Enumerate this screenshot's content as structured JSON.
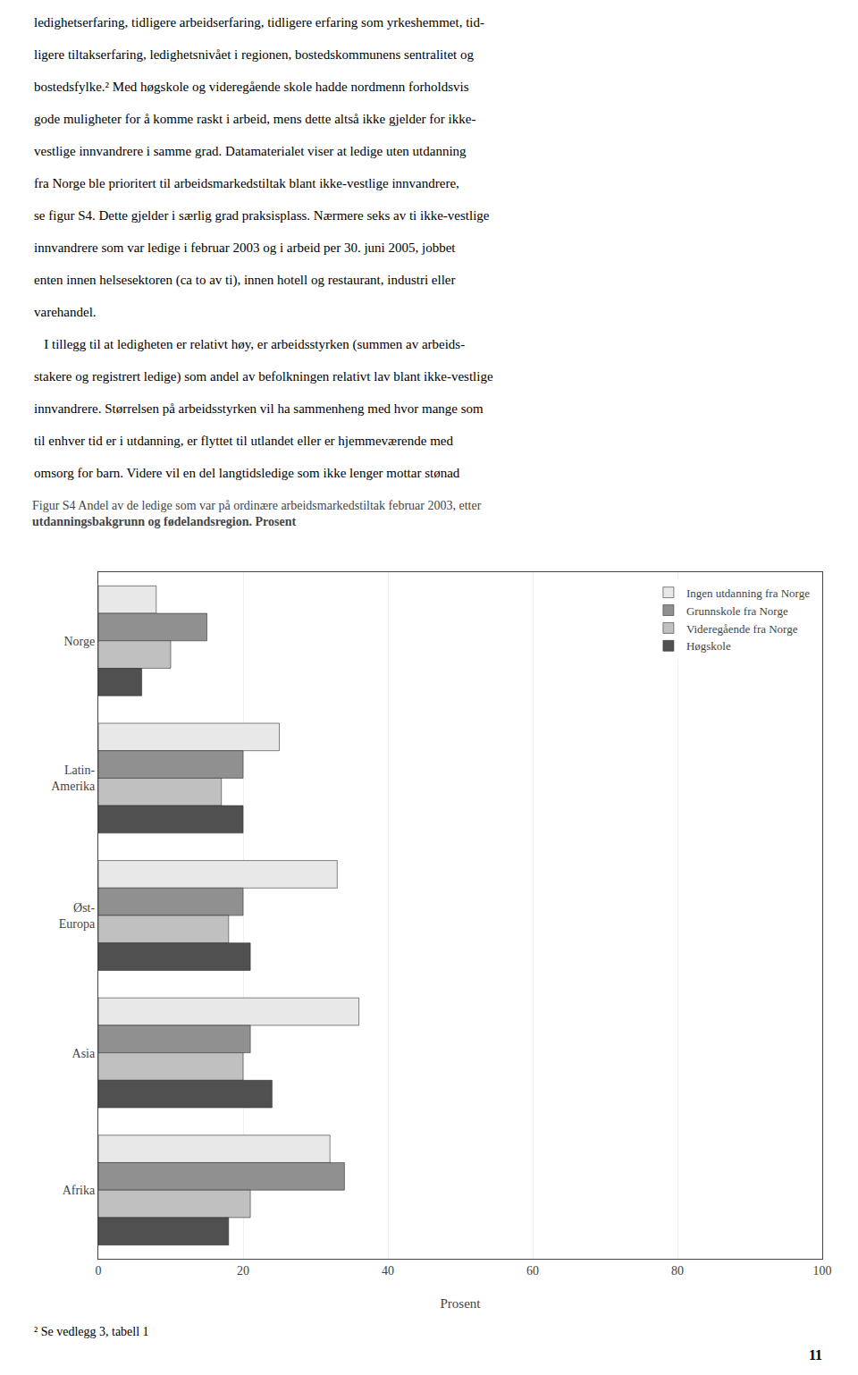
{
  "chart_data": {
    "type": "bar",
    "orientation": "horizontal",
    "title": "Figur S4 Andel av de ledige som var på ordinære arbeidsmarkedstiltak februar 2003, etter\nutdanningsbakgrunn og fødelandsregion. Prosent",
    "categories": [
      "Norge",
      "Latin-\nAmerika",
      "Øst-\nEuropa",
      "Asia",
      "Afrika"
    ],
    "series": [
      {
        "name": "Ingen utdanning fra Norge",
        "color": "#e8e8e8",
        "values": [
          8,
          25,
          33,
          36,
          32
        ]
      },
      {
        "name": "Grunnskole fra Norge",
        "color": "#909090",
        "values": [
          15,
          20,
          20,
          21,
          34
        ]
      },
      {
        "name": "Videregående fra Norge",
        "color": "#c0c0c0",
        "values": [
          10,
          17,
          18,
          20,
          21
        ]
      },
      {
        "name": "Høgskole",
        "color": "#505050",
        "values": [
          6,
          20,
          21,
          24,
          18
        ]
      }
    ],
    "xlabel": "Prosent",
    "xlim": [
      0,
      100
    ],
    "xticks": [
      0,
      20,
      40,
      60,
      80,
      100
    ],
    "grid": true,
    "legend": "upper right",
    "annotations": [
      "ledighetserfaring, tidligere arbeidserfaring, tidligere erfaring som yrkeshemmet, tid-",
      "ligere tiltakserfaring, ledighetsnivået i regionen, bostedskommunens sentralitet og",
      "bostedsfylke.² Med høgskole og videregående skole hadde nordmenn forholdsvis",
      "gode muligheter for å komme raskt i arbeid, mens dette altså ikke gjelder for ikke-",
      "vestlige innvandrere i samme grad. Datamaterialet viser at ledige uten utdanning",
      "fra Norge ble prioritert til arbeidsmarkedstiltak blant ikke-vestlige innvandrere,",
      "se figur S4. Dette gjelder i særlig grad praksisplass. Nærmere seks av ti ikke-vestlige",
      "innvandrere som var ledige i februar 2003 og i arbeid per 30. juni 2005, jobbet",
      "enten innen helsesektoren (ca to av ti), innen hotell og restaurant, industri eller",
      "varehandel.",
      "   I tillegg til at ledigheten er relativt høy, er arbeidsstyrken (summen av arbeids-",
      "stakere og registrert ledige) som andel av befolkningen relativt lav blant ikke-vestlige",
      "innvandrere. Størrelsen på arbeidsstyrken vil ha sammenheng med hvor mange som",
      "til enhver tid er i utdanning, er flyttet til utlandet eller er hjemmeværende med",
      "omsorg for barn. Videre vil en del langtidsledige som ikke lenger mottar stønad"
    ],
    "footnote": "² Se vedlegg 3, tabell 1",
    "page_number": "11"
  }
}
